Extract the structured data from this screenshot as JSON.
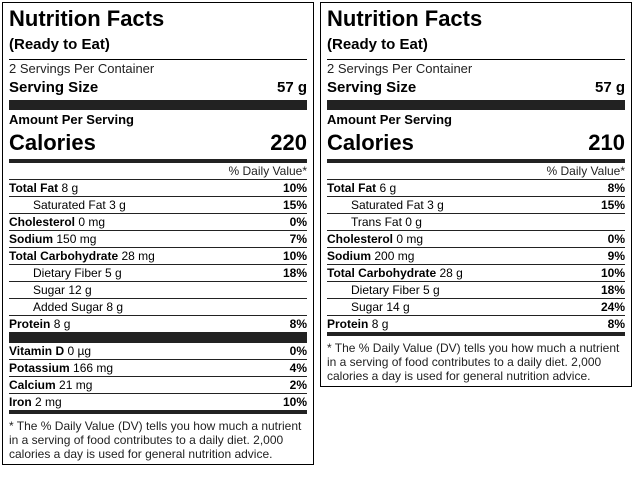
{
  "labels": [
    {
      "title": "Nutrition Facts",
      "subtitle": "(Ready to Eat)",
      "servings": "2 Servings Per Container",
      "serving_size_label": "Serving Size",
      "serving_size": "57 g",
      "amount_per_serving": "Amount Per Serving",
      "calories_label": "Calories",
      "calories": "220",
      "dv_header": "% Daily Value*",
      "sections": [
        [
          {
            "name": "Total Fat",
            "amount": "8 g",
            "dv": "10%",
            "sub": [
              {
                "name": "Saturated Fat",
                "amount": "3 g",
                "dv": "15%"
              }
            ]
          },
          {
            "name": "Cholesterol",
            "amount": "0 mg",
            "dv": "0%"
          },
          {
            "name": "Sodium",
            "amount": "150 mg",
            "dv": "7%"
          },
          {
            "name": "Total Carbohydrate",
            "amount": "28 mg",
            "dv": "10%",
            "sub": [
              {
                "name": "Dietary Fiber",
                "amount": "5 g",
                "dv": "18%"
              },
              {
                "name": "Sugar",
                "amount": "12 g"
              },
              {
                "name": "Added Sugar",
                "amount": "8 g"
              }
            ]
          },
          {
            "name": "Protein",
            "amount": "8 g",
            "dv": "8%"
          }
        ],
        [
          {
            "name": "Vitamin D",
            "amount": "0 µg",
            "dv": "0%"
          },
          {
            "name": "Potassium",
            "amount": "166 mg",
            "dv": "4%"
          },
          {
            "name": "Calcium",
            "amount": "21 mg",
            "dv": "2%"
          },
          {
            "name": "Iron",
            "amount": "2 mg",
            "dv": "10%"
          }
        ]
      ],
      "footnote": "* The % Daily Value (DV) tells you how much a nutrient in a serving of food contributes to a daily diet. 2,000 calories a day is used for general nutrition advice."
    },
    {
      "title": "Nutrition Facts",
      "subtitle": "(Ready to Eat)",
      "servings": "2 Servings Per Container",
      "serving_size_label": "Serving Size",
      "serving_size": "57 g",
      "amount_per_serving": "Amount Per Serving",
      "calories_label": "Calories",
      "calories": "210",
      "dv_header": "% Daily Value*",
      "sections": [
        [
          {
            "name": "Total Fat",
            "amount": "6 g",
            "dv": "8%",
            "sub": [
              {
                "name": "Saturated Fat",
                "amount": "3 g",
                "dv": "15%"
              },
              {
                "name": "Trans Fat",
                "amount": "0 g"
              }
            ]
          },
          {
            "name": "Cholesterol",
            "amount": "0 mg",
            "dv": "0%"
          },
          {
            "name": "Sodium",
            "amount": "200 mg",
            "dv": "9%"
          },
          {
            "name": "Total Carbohydrate",
            "amount": "28 g",
            "dv": "10%",
            "sub": [
              {
                "name": "Dietary Fiber",
                "amount": "5 g",
                "dv": "18%"
              },
              {
                "name": "Sugar",
                "amount": "14 g",
                "dv": "24%"
              }
            ]
          },
          {
            "name": "Protein",
            "amount": "8 g",
            "dv": "8%"
          }
        ]
      ],
      "footnote": "* The % Daily Value (DV) tells you how much a nutrient in a serving of food contributes to a daily diet. 2,000 calories a day is used for general nutrition advice."
    }
  ]
}
